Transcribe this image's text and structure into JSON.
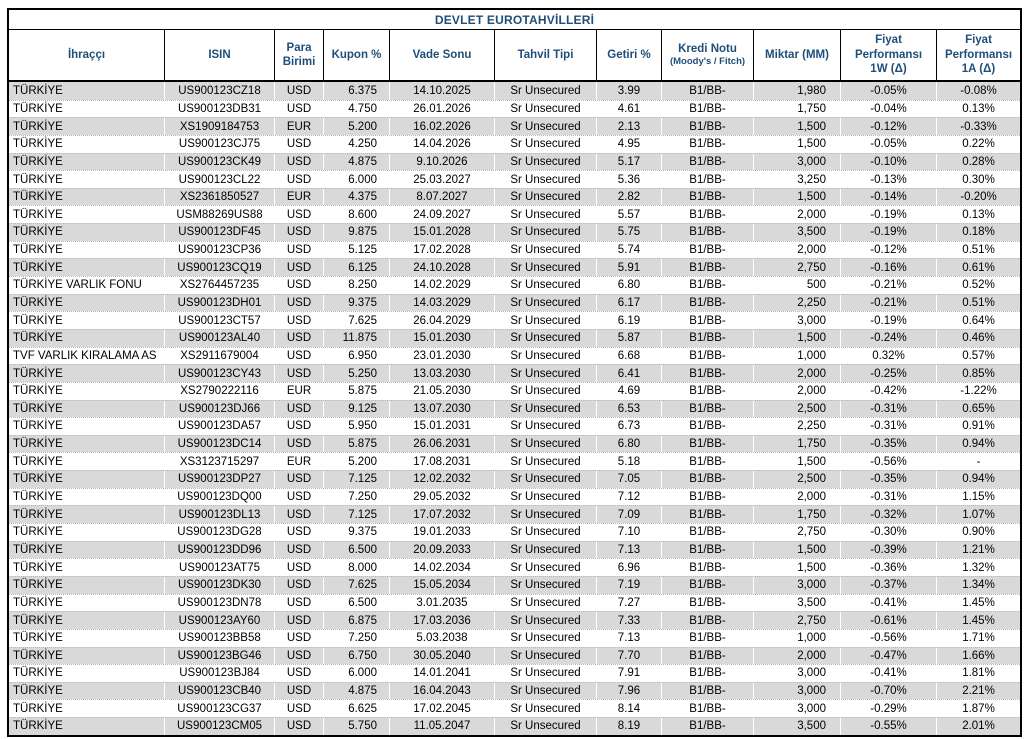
{
  "title": "DEVLET EUROTAHVİLLERİ",
  "columns": [
    {
      "key": "issuer",
      "label": "İhraççı",
      "align": "left"
    },
    {
      "key": "isin",
      "label": "ISIN",
      "align": "center"
    },
    {
      "key": "currency",
      "label": "Para Birimi",
      "align": "center"
    },
    {
      "key": "coupon",
      "label": "Kupon %",
      "align": "right",
      "pad": "pad-r-sm"
    },
    {
      "key": "maturity",
      "label": "Vade Sonu",
      "align": "center"
    },
    {
      "key": "bond_type",
      "label": "Tahvil Tipi",
      "align": "center"
    },
    {
      "key": "yield",
      "label": "Getiri %",
      "align": "center"
    },
    {
      "key": "credit_rating",
      "label": "Kredi Notu",
      "sublabel": "(Moody's / Fitch)",
      "align": "center"
    },
    {
      "key": "amount_mm",
      "label": "Miktar (MM)",
      "align": "right",
      "pad": "pad-r-md"
    },
    {
      "key": "perf_1w",
      "label": "Fiyat\nPerformansı\n1W (Δ)",
      "align": "center"
    },
    {
      "key": "perf_1a",
      "label": "Fiyat\nPerformansı\n1A (Δ)",
      "align": "center"
    }
  ],
  "colors": {
    "heading_text": "#1F4E79",
    "stripe": "#D9D9D9",
    "border": "#000000"
  },
  "rows": [
    {
      "issuer": "TÜRKİYE",
      "isin": "US900123CZ18",
      "currency": "USD",
      "coupon": "6.375",
      "maturity": "14.10.2025",
      "bond_type": "Sr Unsecured",
      "yield": "3.99",
      "credit_rating": "B1/BB-",
      "amount_mm": "1,980",
      "perf_1w": "-0.05%",
      "perf_1a": "-0.08%"
    },
    {
      "issuer": "TÜRKİYE",
      "isin": "US900123DB31",
      "currency": "USD",
      "coupon": "4.750",
      "maturity": "26.01.2026",
      "bond_type": "Sr Unsecured",
      "yield": "4.61",
      "credit_rating": "B1/BB-",
      "amount_mm": "1,750",
      "perf_1w": "-0.04%",
      "perf_1a": "0.13%"
    },
    {
      "issuer": "TÜRKİYE",
      "isin": "XS1909184753",
      "currency": "EUR",
      "coupon": "5.200",
      "maturity": "16.02.2026",
      "bond_type": "Sr Unsecured",
      "yield": "2.13",
      "credit_rating": "B1/BB-",
      "amount_mm": "1,500",
      "perf_1w": "-0.12%",
      "perf_1a": "-0.33%"
    },
    {
      "issuer": "TÜRKİYE",
      "isin": "US900123CJ75",
      "currency": "USD",
      "coupon": "4.250",
      "maturity": "14.04.2026",
      "bond_type": "Sr Unsecured",
      "yield": "4.95",
      "credit_rating": "B1/BB-",
      "amount_mm": "1,500",
      "perf_1w": "-0.05%",
      "perf_1a": "0.22%"
    },
    {
      "issuer": "TÜRKİYE",
      "isin": "US900123CK49",
      "currency": "USD",
      "coupon": "4.875",
      "maturity": "9.10.2026",
      "bond_type": "Sr Unsecured",
      "yield": "5.17",
      "credit_rating": "B1/BB-",
      "amount_mm": "3,000",
      "perf_1w": "-0.10%",
      "perf_1a": "0.28%"
    },
    {
      "issuer": "TÜRKİYE",
      "isin": "US900123CL22",
      "currency": "USD",
      "coupon": "6.000",
      "maturity": "25.03.2027",
      "bond_type": "Sr Unsecured",
      "yield": "5.36",
      "credit_rating": "B1/BB-",
      "amount_mm": "3,250",
      "perf_1w": "-0.13%",
      "perf_1a": "0.30%"
    },
    {
      "issuer": "TÜRKİYE",
      "isin": "XS2361850527",
      "currency": "EUR",
      "coupon": "4.375",
      "maturity": "8.07.2027",
      "bond_type": "Sr Unsecured",
      "yield": "2.82",
      "credit_rating": "B1/BB-",
      "amount_mm": "1,500",
      "perf_1w": "-0.14%",
      "perf_1a": "-0.20%"
    },
    {
      "issuer": "TÜRKİYE",
      "isin": "USM88269US88",
      "currency": "USD",
      "coupon": "8.600",
      "maturity": "24.09.2027",
      "bond_type": "Sr Unsecured",
      "yield": "5.57",
      "credit_rating": "B1/BB-",
      "amount_mm": "2,000",
      "perf_1w": "-0.19%",
      "perf_1a": "0.13%"
    },
    {
      "issuer": "TÜRKİYE",
      "isin": "US900123DF45",
      "currency": "USD",
      "coupon": "9.875",
      "maturity": "15.01.2028",
      "bond_type": "Sr Unsecured",
      "yield": "5.75",
      "credit_rating": "B1/BB-",
      "amount_mm": "3,500",
      "perf_1w": "-0.19%",
      "perf_1a": "0.18%"
    },
    {
      "issuer": "TÜRKİYE",
      "isin": "US900123CP36",
      "currency": "USD",
      "coupon": "5.125",
      "maturity": "17.02.2028",
      "bond_type": "Sr Unsecured",
      "yield": "5.74",
      "credit_rating": "B1/BB-",
      "amount_mm": "2,000",
      "perf_1w": "-0.12%",
      "perf_1a": "0.51%"
    },
    {
      "issuer": "TÜRKİYE",
      "isin": "US900123CQ19",
      "currency": "USD",
      "coupon": "6.125",
      "maturity": "24.10.2028",
      "bond_type": "Sr Unsecured",
      "yield": "5.91",
      "credit_rating": "B1/BB-",
      "amount_mm": "2,750",
      "perf_1w": "-0.16%",
      "perf_1a": "0.61%"
    },
    {
      "issuer": "TÜRKİYE VARLIK FONU",
      "isin": "XS2764457235",
      "currency": "USD",
      "coupon": "8.250",
      "maturity": "14.02.2029",
      "bond_type": "Sr Unsecured",
      "yield": "6.80",
      "credit_rating": "B1/BB-",
      "amount_mm": "500",
      "perf_1w": "-0.21%",
      "perf_1a": "0.52%"
    },
    {
      "issuer": "TÜRKİYE",
      "isin": "US900123DH01",
      "currency": "USD",
      "coupon": "9.375",
      "maturity": "14.03.2029",
      "bond_type": "Sr Unsecured",
      "yield": "6.17",
      "credit_rating": "B1/BB-",
      "amount_mm": "2,250",
      "perf_1w": "-0.21%",
      "perf_1a": "0.51%"
    },
    {
      "issuer": "TÜRKİYE",
      "isin": "US900123CT57",
      "currency": "USD",
      "coupon": "7.625",
      "maturity": "26.04.2029",
      "bond_type": "Sr Unsecured",
      "yield": "6.19",
      "credit_rating": "B1/BB-",
      "amount_mm": "3,000",
      "perf_1w": "-0.19%",
      "perf_1a": "0.64%"
    },
    {
      "issuer": "TÜRKİYE",
      "isin": "US900123AL40",
      "currency": "USD",
      "coupon": "11.875",
      "maturity": "15.01.2030",
      "bond_type": "Sr Unsecured",
      "yield": "5.87",
      "credit_rating": "B1/BB-",
      "amount_mm": "1,500",
      "perf_1w": "-0.24%",
      "perf_1a": "0.46%"
    },
    {
      "issuer": "TVF VARLIK KIRALAMA AS",
      "isin": "XS2911679004",
      "currency": "USD",
      "coupon": "6.950",
      "maturity": "23.01.2030",
      "bond_type": "Sr Unsecured",
      "yield": "6.68",
      "credit_rating": "B1/BB-",
      "amount_mm": "1,000",
      "perf_1w": "0.32%",
      "perf_1a": "0.57%"
    },
    {
      "issuer": "TÜRKİYE",
      "isin": "US900123CY43",
      "currency": "USD",
      "coupon": "5.250",
      "maturity": "13.03.2030",
      "bond_type": "Sr Unsecured",
      "yield": "6.41",
      "credit_rating": "B1/BB-",
      "amount_mm": "2,000",
      "perf_1w": "-0.25%",
      "perf_1a": "0.85%"
    },
    {
      "issuer": "TÜRKİYE",
      "isin": "XS2790222116",
      "currency": "EUR",
      "coupon": "5.875",
      "maturity": "21.05.2030",
      "bond_type": "Sr Unsecured",
      "yield": "4.69",
      "credit_rating": "B1/BB-",
      "amount_mm": "2,000",
      "perf_1w": "-0.42%",
      "perf_1a": "-1.22%"
    },
    {
      "issuer": "TÜRKİYE",
      "isin": "US900123DJ66",
      "currency": "USD",
      "coupon": "9.125",
      "maturity": "13.07.2030",
      "bond_type": "Sr Unsecured",
      "yield": "6.53",
      "credit_rating": "B1/BB-",
      "amount_mm": "2,500",
      "perf_1w": "-0.31%",
      "perf_1a": "0.65%"
    },
    {
      "issuer": "TÜRKİYE",
      "isin": "US900123DA57",
      "currency": "USD",
      "coupon": "5.950",
      "maturity": "15.01.2031",
      "bond_type": "Sr Unsecured",
      "yield": "6.73",
      "credit_rating": "B1/BB-",
      "amount_mm": "2,250",
      "perf_1w": "-0.31%",
      "perf_1a": "0.91%"
    },
    {
      "issuer": "TÜRKİYE",
      "isin": "US900123DC14",
      "currency": "USD",
      "coupon": "5.875",
      "maturity": "26.06.2031",
      "bond_type": "Sr Unsecured",
      "yield": "6.80",
      "credit_rating": "B1/BB-",
      "amount_mm": "1,750",
      "perf_1w": "-0.35%",
      "perf_1a": "0.94%"
    },
    {
      "issuer": "TÜRKİYE",
      "isin": "XS3123715297",
      "currency": "EUR",
      "coupon": "5.200",
      "maturity": "17.08.2031",
      "bond_type": "Sr Unsecured",
      "yield": "5.18",
      "credit_rating": "B1/BB-",
      "amount_mm": "1,500",
      "perf_1w": "-0.56%",
      "perf_1a": "-"
    },
    {
      "issuer": "TÜRKİYE",
      "isin": "US900123DP27",
      "currency": "USD",
      "coupon": "7.125",
      "maturity": "12.02.2032",
      "bond_type": "Sr Unsecured",
      "yield": "7.05",
      "credit_rating": "B1/BB-",
      "amount_mm": "2,500",
      "perf_1w": "-0.35%",
      "perf_1a": "0.94%"
    },
    {
      "issuer": "TÜRKİYE",
      "isin": "US900123DQ00",
      "currency": "USD",
      "coupon": "7.250",
      "maturity": "29.05.2032",
      "bond_type": "Sr Unsecured",
      "yield": "7.12",
      "credit_rating": "B1/BB-",
      "amount_mm": "2,000",
      "perf_1w": "-0.31%",
      "perf_1a": "1.15%"
    },
    {
      "issuer": "TÜRKİYE",
      "isin": "US900123DL13",
      "currency": "USD",
      "coupon": "7.125",
      "maturity": "17.07.2032",
      "bond_type": "Sr Unsecured",
      "yield": "7.09",
      "credit_rating": "B1/BB-",
      "amount_mm": "1,750",
      "perf_1w": "-0.32%",
      "perf_1a": "1.07%"
    },
    {
      "issuer": "TÜRKİYE",
      "isin": "US900123DG28",
      "currency": "USD",
      "coupon": "9.375",
      "maturity": "19.01.2033",
      "bond_type": "Sr Unsecured",
      "yield": "7.10",
      "credit_rating": "B1/BB-",
      "amount_mm": "2,750",
      "perf_1w": "-0.30%",
      "perf_1a": "0.90%"
    },
    {
      "issuer": "TÜRKİYE",
      "isin": "US900123DD96",
      "currency": "USD",
      "coupon": "6.500",
      "maturity": "20.09.2033",
      "bond_type": "Sr Unsecured",
      "yield": "7.13",
      "credit_rating": "B1/BB-",
      "amount_mm": "1,500",
      "perf_1w": "-0.39%",
      "perf_1a": "1.21%"
    },
    {
      "issuer": "TÜRKİYE",
      "isin": "US900123AT75",
      "currency": "USD",
      "coupon": "8.000",
      "maturity": "14.02.2034",
      "bond_type": "Sr Unsecured",
      "yield": "6.96",
      "credit_rating": "B1/BB-",
      "amount_mm": "1,500",
      "perf_1w": "-0.36%",
      "perf_1a": "1.32%"
    },
    {
      "issuer": "TÜRKİYE",
      "isin": "US900123DK30",
      "currency": "USD",
      "coupon": "7.625",
      "maturity": "15.05.2034",
      "bond_type": "Sr Unsecured",
      "yield": "7.19",
      "credit_rating": "B1/BB-",
      "amount_mm": "3,000",
      "perf_1w": "-0.37%",
      "perf_1a": "1.34%"
    },
    {
      "issuer": "TÜRKİYE",
      "isin": "US900123DN78",
      "currency": "USD",
      "coupon": "6.500",
      "maturity": "3.01.2035",
      "bond_type": "Sr Unsecured",
      "yield": "7.27",
      "credit_rating": "B1/BB-",
      "amount_mm": "3,500",
      "perf_1w": "-0.41%",
      "perf_1a": "1.45%"
    },
    {
      "issuer": "TÜRKİYE",
      "isin": "US900123AY60",
      "currency": "USD",
      "coupon": "6.875",
      "maturity": "17.03.2036",
      "bond_type": "Sr Unsecured",
      "yield": "7.33",
      "credit_rating": "B1/BB-",
      "amount_mm": "2,750",
      "perf_1w": "-0.61%",
      "perf_1a": "1.45%"
    },
    {
      "issuer": "TÜRKİYE",
      "isin": "US900123BB58",
      "currency": "USD",
      "coupon": "7.250",
      "maturity": "5.03.2038",
      "bond_type": "Sr Unsecured",
      "yield": "7.13",
      "credit_rating": "B1/BB-",
      "amount_mm": "1,000",
      "perf_1w": "-0.56%",
      "perf_1a": "1.71%"
    },
    {
      "issuer": "TÜRKİYE",
      "isin": "US900123BG46",
      "currency": "USD",
      "coupon": "6.750",
      "maturity": "30.05.2040",
      "bond_type": "Sr Unsecured",
      "yield": "7.70",
      "credit_rating": "B1/BB-",
      "amount_mm": "2,000",
      "perf_1w": "-0.47%",
      "perf_1a": "1.66%"
    },
    {
      "issuer": "TÜRKİYE",
      "isin": "US900123BJ84",
      "currency": "USD",
      "coupon": "6.000",
      "maturity": "14.01.2041",
      "bond_type": "Sr Unsecured",
      "yield": "7.91",
      "credit_rating": "B1/BB-",
      "amount_mm": "3,000",
      "perf_1w": "-0.41%",
      "perf_1a": "1.81%"
    },
    {
      "issuer": "TÜRKİYE",
      "isin": "US900123CB40",
      "currency": "USD",
      "coupon": "4.875",
      "maturity": "16.04.2043",
      "bond_type": "Sr Unsecured",
      "yield": "7.96",
      "credit_rating": "B1/BB-",
      "amount_mm": "3,000",
      "perf_1w": "-0.70%",
      "perf_1a": "2.21%"
    },
    {
      "issuer": "TÜRKİYE",
      "isin": "US900123CG37",
      "currency": "USD",
      "coupon": "6.625",
      "maturity": "17.02.2045",
      "bond_type": "Sr Unsecured",
      "yield": "8.14",
      "credit_rating": "B1/BB-",
      "amount_mm": "3,000",
      "perf_1w": "-0.29%",
      "perf_1a": "1.87%"
    },
    {
      "issuer": "TÜRKİYE",
      "isin": "US900123CM05",
      "currency": "USD",
      "coupon": "5.750",
      "maturity": "11.05.2047",
      "bond_type": "Sr Unsecured",
      "yield": "8.19",
      "credit_rating": "B1/BB-",
      "amount_mm": "3,500",
      "perf_1w": "-0.55%",
      "perf_1a": "2.01%"
    }
  ]
}
